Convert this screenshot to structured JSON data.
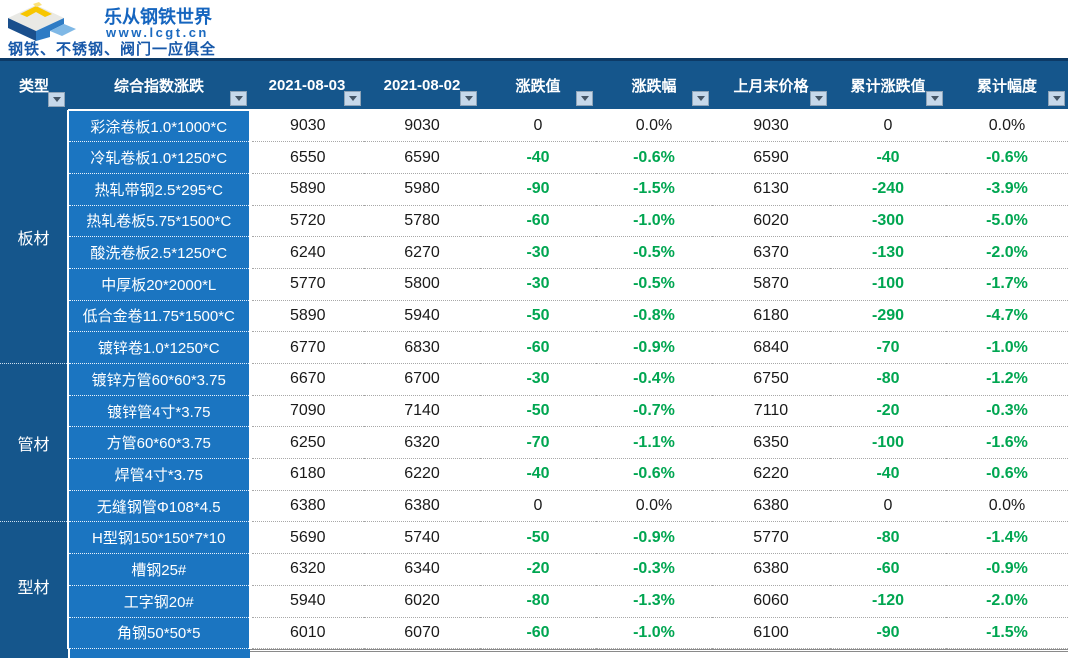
{
  "brand": {
    "name": "乐从钢铁世界",
    "url": "www.lcgt.cn",
    "tagline": "钢铁、不锈钢、阀门一应俱全"
  },
  "colors": {
    "header_bg": "#15568C",
    "row_label_bg": "#1B75C1",
    "negative_green": "#00A651",
    "brand_blue": "#1565BF",
    "logo_yellow": "#F7C600"
  },
  "table": {
    "columns": [
      "类型",
      "综合指数涨跌",
      "2021-08-03",
      "2021-08-02",
      "涨跌值",
      "涨跌幅",
      "上月末价格",
      "累计涨跌值",
      "累计幅度"
    ],
    "filter_icon": "chevron-down",
    "groups": [
      {
        "label": "板材",
        "rows": [
          {
            "name": "彩涂卷板1.0*1000*C",
            "price_0803": "9030",
            "price_0802": "9030",
            "change": "0",
            "change_pct": "0.0%",
            "last_month": "9030",
            "cum_change": "0",
            "cum_pct": "0.0%"
          },
          {
            "name": "冷轧卷板1.0*1250*C",
            "price_0803": "6550",
            "price_0802": "6590",
            "change": "-40",
            "change_pct": "-0.6%",
            "last_month": "6590",
            "cum_change": "-40",
            "cum_pct": "-0.6%"
          },
          {
            "name": "热轧带钢2.5*295*C",
            "price_0803": "5890",
            "price_0802": "5980",
            "change": "-90",
            "change_pct": "-1.5%",
            "last_month": "6130",
            "cum_change": "-240",
            "cum_pct": "-3.9%"
          },
          {
            "name": "热轧卷板5.75*1500*C",
            "price_0803": "5720",
            "price_0802": "5780",
            "change": "-60",
            "change_pct": "-1.0%",
            "last_month": "6020",
            "cum_change": "-300",
            "cum_pct": "-5.0%"
          },
          {
            "name": "酸洗卷板2.5*1250*C",
            "price_0803": "6240",
            "price_0802": "6270",
            "change": "-30",
            "change_pct": "-0.5%",
            "last_month": "6370",
            "cum_change": "-130",
            "cum_pct": "-2.0%"
          },
          {
            "name": "中厚板20*2000*L",
            "price_0803": "5770",
            "price_0802": "5800",
            "change": "-30",
            "change_pct": "-0.5%",
            "last_month": "5870",
            "cum_change": "-100",
            "cum_pct": "-1.7%"
          },
          {
            "name": "低合金卷11.75*1500*C",
            "price_0803": "5890",
            "price_0802": "5940",
            "change": "-50",
            "change_pct": "-0.8%",
            "last_month": "6180",
            "cum_change": "-290",
            "cum_pct": "-4.7%"
          },
          {
            "name": "镀锌卷1.0*1250*C",
            "price_0803": "6770",
            "price_0802": "6830",
            "change": "-60",
            "change_pct": "-0.9%",
            "last_month": "6840",
            "cum_change": "-70",
            "cum_pct": "-1.0%"
          }
        ]
      },
      {
        "label": "管材",
        "rows": [
          {
            "name": "镀锌方管60*60*3.75",
            "price_0803": "6670",
            "price_0802": "6700",
            "change": "-30",
            "change_pct": "-0.4%",
            "last_month": "6750",
            "cum_change": "-80",
            "cum_pct": "-1.2%"
          },
          {
            "name": "镀锌管4寸*3.75",
            "price_0803": "7090",
            "price_0802": "7140",
            "change": "-50",
            "change_pct": "-0.7%",
            "last_month": "7110",
            "cum_change": "-20",
            "cum_pct": "-0.3%"
          },
          {
            "name": "方管60*60*3.75",
            "price_0803": "6250",
            "price_0802": "6320",
            "change": "-70",
            "change_pct": "-1.1%",
            "last_month": "6350",
            "cum_change": "-100",
            "cum_pct": "-1.6%"
          },
          {
            "name": "焊管4寸*3.75",
            "price_0803": "6180",
            "price_0802": "6220",
            "change": "-40",
            "change_pct": "-0.6%",
            "last_month": "6220",
            "cum_change": "-40",
            "cum_pct": "-0.6%"
          },
          {
            "name": "无缝钢管Φ108*4.5",
            "price_0803": "6380",
            "price_0802": "6380",
            "change": "0",
            "change_pct": "0.0%",
            "last_month": "6380",
            "cum_change": "0",
            "cum_pct": "0.0%"
          }
        ]
      },
      {
        "label": "型材",
        "rows": [
          {
            "name": "H型钢150*150*7*10",
            "price_0803": "5690",
            "price_0802": "5740",
            "change": "-50",
            "change_pct": "-0.9%",
            "last_month": "5770",
            "cum_change": "-80",
            "cum_pct": "-1.4%"
          },
          {
            "name": "槽钢25#",
            "price_0803": "6320",
            "price_0802": "6340",
            "change": "-20",
            "change_pct": "-0.3%",
            "last_month": "6380",
            "cum_change": "-60",
            "cum_pct": "-0.9%"
          },
          {
            "name": "工字钢20#",
            "price_0803": "5940",
            "price_0802": "6020",
            "change": "-80",
            "change_pct": "-1.3%",
            "last_month": "6060",
            "cum_change": "-120",
            "cum_pct": "-2.0%"
          },
          {
            "name": "角钢50*50*5",
            "price_0803": "6010",
            "price_0802": "6070",
            "change": "-60",
            "change_pct": "-1.0%",
            "last_month": "6100",
            "cum_change": "-90",
            "cum_pct": "-1.5%"
          }
        ]
      }
    ]
  }
}
